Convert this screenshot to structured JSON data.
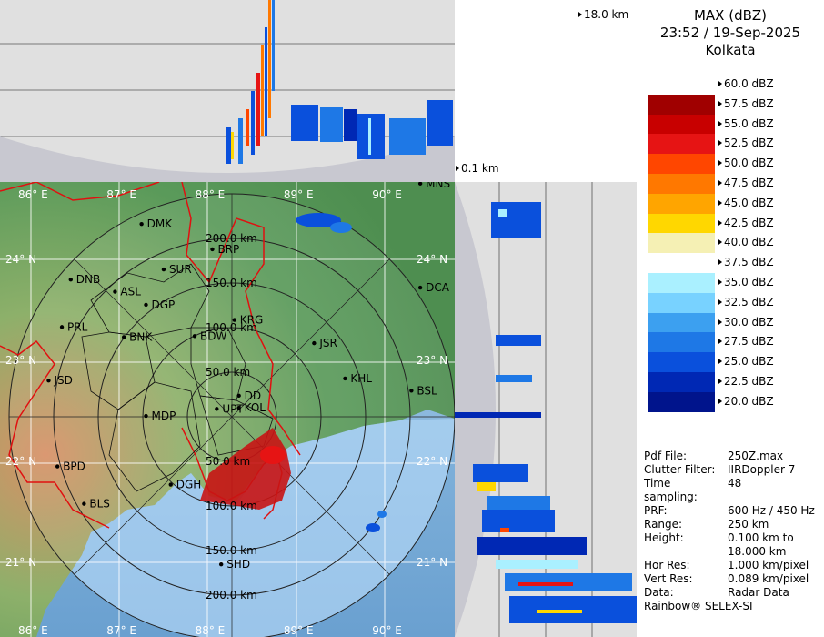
{
  "legend": {
    "title": "MAX (dBZ)",
    "datetime": "23:52 / 19-Sep-2025",
    "station": "Kolkata",
    "levels": [
      {
        "label": "60.0 dBZ",
        "color": "#ffffff"
      },
      {
        "label": "57.5 dBZ",
        "color": "#a00000"
      },
      {
        "label": "55.0 dBZ",
        "color": "#c80000"
      },
      {
        "label": "52.5 dBZ",
        "color": "#e61414"
      },
      {
        "label": "50.0 dBZ",
        "color": "#ff4600"
      },
      {
        "label": "47.5 dBZ",
        "color": "#ff7800"
      },
      {
        "label": "45.0 dBZ",
        "color": "#ffa500"
      },
      {
        "label": "42.5 dBZ",
        "color": "#ffd700"
      },
      {
        "label": "40.0 dBZ",
        "color": "#f5f0b4"
      },
      {
        "label": "37.5 dBZ",
        "color": "#ffffff"
      },
      {
        "label": "35.0 dBZ",
        "color": "#aaf0ff"
      },
      {
        "label": "32.5 dBZ",
        "color": "#78d2ff"
      },
      {
        "label": "30.0 dBZ",
        "color": "#3ca0f0"
      },
      {
        "label": "27.5 dBZ",
        "color": "#1e78e6"
      },
      {
        "label": "25.0 dBZ",
        "color": "#0a50dc"
      },
      {
        "label": "22.5 dBZ",
        "color": "#0028b4"
      },
      {
        "label": "20.0 dBZ",
        "color": "#00148c"
      }
    ]
  },
  "info": [
    {
      "k": "Pdf File:",
      "v": "250Z.max"
    },
    {
      "k": "Clutter Filter:",
      "v": "IIRDoppler 7"
    },
    {
      "k": "Time sampling:",
      "v": "48"
    },
    {
      "k": "PRF:",
      "v": "600 Hz / 450 Hz"
    },
    {
      "k": "Range:",
      "v": "250 km"
    },
    {
      "k": "Height:",
      "v": "0.100 km to"
    },
    {
      "k": "",
      "v": "18.000 km"
    },
    {
      "k": "Hor Res:",
      "v": "1.000 km/pixel"
    },
    {
      "k": "Vert Res:",
      "v": "0.089 km/pixel"
    },
    {
      "k": "Data:",
      "v": "Radar Data"
    },
    {
      "k": "Rainbow® SELEX-SI",
      "v": ""
    }
  ],
  "profile": {
    "top_label": "18.0 km",
    "bottom_label": "0.1 km"
  },
  "map": {
    "lon_labels": [
      "86° E",
      "87° E",
      "88° E",
      "89° E",
      "90° E"
    ],
    "lat_labels": [
      "24° N",
      "23° N",
      "22° N",
      "21° N"
    ],
    "range_labels": [
      "50.0 km",
      "100.0 km",
      "150.0 km",
      "200.0 km"
    ],
    "stations": [
      {
        "code": "MNS",
        "lon": 90.4,
        "lat": 24.75
      },
      {
        "code": "DMK",
        "lon": 87.25,
        "lat": 24.35
      },
      {
        "code": "BRP",
        "lon": 88.05,
        "lat": 24.1
      },
      {
        "code": "SUR",
        "lon": 87.5,
        "lat": 23.9
      },
      {
        "code": "DNB",
        "lon": 86.45,
        "lat": 23.8
      },
      {
        "code": "ASL",
        "lon": 86.95,
        "lat": 23.68
      },
      {
        "code": "DGP",
        "lon": 87.3,
        "lat": 23.55
      },
      {
        "code": "DCA",
        "lon": 90.4,
        "lat": 23.72
      },
      {
        "code": "KRG",
        "lon": 88.3,
        "lat": 23.4
      },
      {
        "code": "PRL",
        "lon": 86.35,
        "lat": 23.33
      },
      {
        "code": "BNK",
        "lon": 87.05,
        "lat": 23.23
      },
      {
        "code": "BDW",
        "lon": 87.85,
        "lat": 23.24
      },
      {
        "code": "JSR",
        "lon": 89.2,
        "lat": 23.17
      },
      {
        "code": "KHL",
        "lon": 89.55,
        "lat": 22.82
      },
      {
        "code": "JSD",
        "lon": 86.2,
        "lat": 22.8
      },
      {
        "code": "BSL",
        "lon": 90.3,
        "lat": 22.7
      },
      {
        "code": "DD",
        "lon": 88.35,
        "lat": 22.65
      },
      {
        "code": "UPT",
        "lon": 88.1,
        "lat": 22.52
      },
      {
        "code": "KOL",
        "lon": 88.35,
        "lat": 22.53
      },
      {
        "code": "MDP",
        "lon": 87.3,
        "lat": 22.45
      },
      {
        "code": "BPD",
        "lon": 86.3,
        "lat": 21.95
      },
      {
        "code": "DGH",
        "lon": 87.58,
        "lat": 21.77
      },
      {
        "code": "BLS",
        "lon": 86.6,
        "lat": 21.58
      },
      {
        "code": "SHD",
        "lon": 88.15,
        "lat": 20.98
      }
    ]
  }
}
